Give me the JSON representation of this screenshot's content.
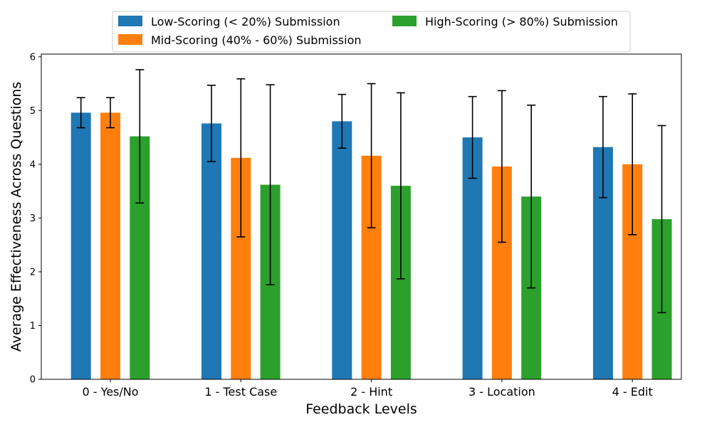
{
  "chart_data": {
    "type": "bar",
    "title": "",
    "xlabel": "Feedback Levels",
    "ylabel": "Average Effectiveness Across Questions",
    "categories": [
      "0 - Yes/No",
      "1 - Test Case",
      "2 - Hint",
      "3 - Location",
      "4 - Edit"
    ],
    "ylim": [
      0,
      6.05
    ],
    "yticks": [
      0,
      1,
      2,
      3,
      4,
      5,
      6
    ],
    "grid": false,
    "legend_position": "top-center",
    "series": [
      {
        "name": "Low-Scoring (< 20%) Submission",
        "color": "#1f77b4",
        "values": [
          4.96,
          4.76,
          4.8,
          4.5,
          4.32
        ],
        "errors": [
          0.28,
          0.71,
          0.5,
          0.76,
          0.94
        ]
      },
      {
        "name": "Mid-Scoring (40% - 60%) Submission",
        "color": "#ff7f0e",
        "values": [
          4.96,
          4.12,
          4.16,
          3.96,
          4.0
        ],
        "errors": [
          0.28,
          1.47,
          1.34,
          1.41,
          1.31
        ]
      },
      {
        "name": "High-Scoring (> 80%) Submission",
        "color": "#2ca02c",
        "values": [
          4.52,
          3.62,
          3.6,
          3.4,
          2.98
        ],
        "errors": [
          1.24,
          1.86,
          1.73,
          1.7,
          1.74
        ]
      }
    ]
  }
}
